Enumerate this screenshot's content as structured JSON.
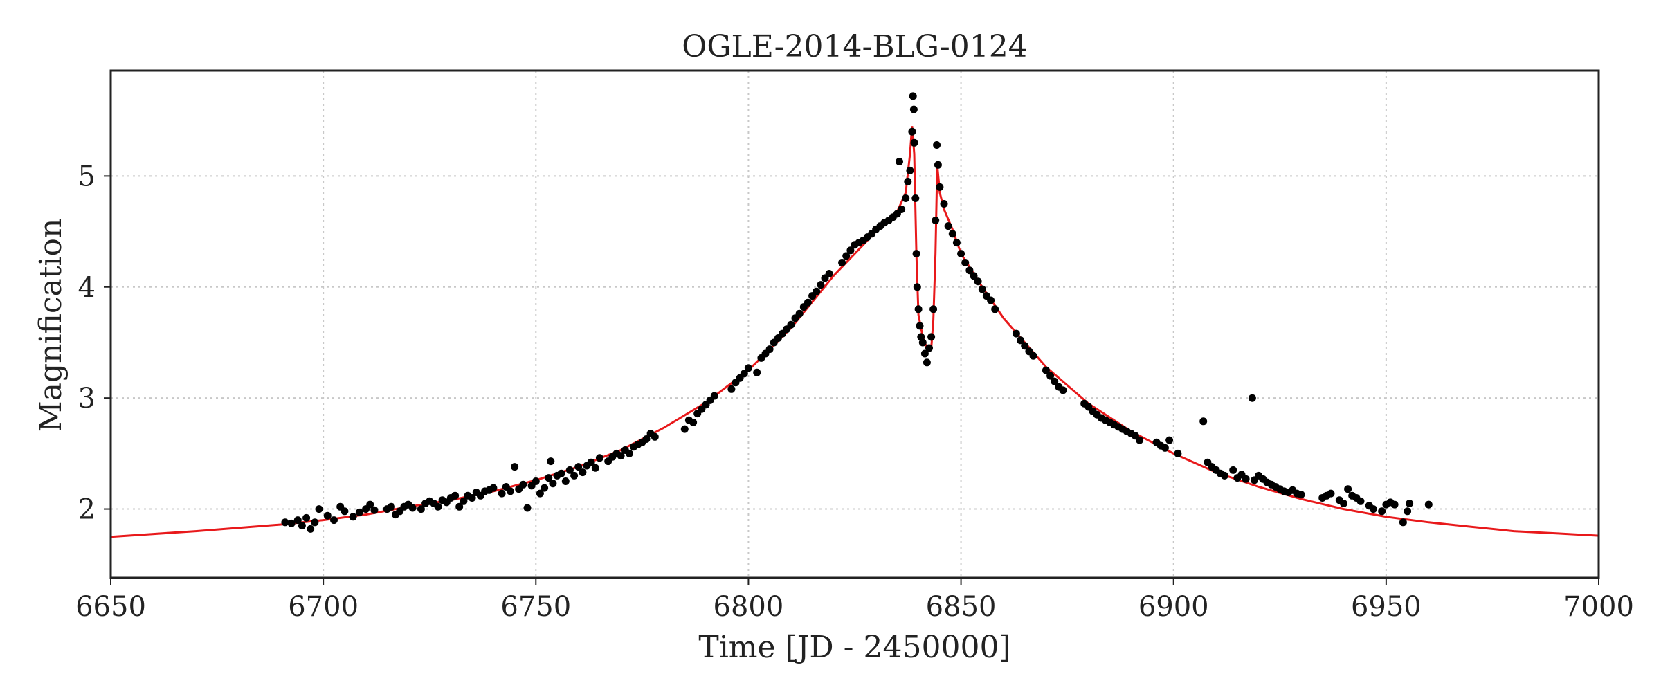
{
  "chart_data": {
    "type": "scatter",
    "title": "OGLE-2014-BLG-0124",
    "xlabel": "Time [JD - 2450000]",
    "ylabel": "Magnification",
    "xlim": [
      6650,
      7000
    ],
    "ylim": [
      1.38,
      5.95
    ],
    "xticks": [
      6650,
      6700,
      6750,
      6800,
      6850,
      6900,
      6950,
      7000
    ],
    "yticks": [
      2,
      3,
      4,
      5
    ],
    "grid": true,
    "colors": {
      "data": "#000000",
      "model": "#e8191b"
    },
    "series": [
      {
        "kind": "points",
        "color": "#000000",
        "points": [
          [
            6691.0,
            1.88
          ],
          [
            6692.5,
            1.87
          ],
          [
            6694.0,
            1.9
          ],
          [
            6695.0,
            1.85
          ],
          [
            6696.0,
            1.92
          ],
          [
            6697.0,
            1.82
          ],
          [
            6698.0,
            1.88
          ],
          [
            6699.0,
            2.0
          ],
          [
            6701.0,
            1.94
          ],
          [
            6702.5,
            1.9
          ],
          [
            6704.0,
            2.02
          ],
          [
            6705.0,
            1.98
          ],
          [
            6707.0,
            1.93
          ],
          [
            6708.5,
            1.97
          ],
          [
            6710.0,
            2.0
          ],
          [
            6711.0,
            2.04
          ],
          [
            6712.0,
            1.99
          ],
          [
            6715.0,
            2.0
          ],
          [
            6716.0,
            2.02
          ],
          [
            6717.0,
            1.95
          ],
          [
            6718.0,
            1.98
          ],
          [
            6719.0,
            2.02
          ],
          [
            6720.0,
            2.04
          ],
          [
            6721.0,
            2.01
          ],
          [
            6723.0,
            2.0
          ],
          [
            6724.0,
            2.05
          ],
          [
            6725.0,
            2.07
          ],
          [
            6726.0,
            2.05
          ],
          [
            6727.0,
            2.02
          ],
          [
            6728.0,
            2.08
          ],
          [
            6729.0,
            2.06
          ],
          [
            6730.0,
            2.1
          ],
          [
            6731.0,
            2.12
          ],
          [
            6732.0,
            2.02
          ],
          [
            6733.0,
            2.07
          ],
          [
            6734.0,
            2.12
          ],
          [
            6735.0,
            2.1
          ],
          [
            6736.0,
            2.15
          ],
          [
            6737.0,
            2.12
          ],
          [
            6738.0,
            2.16
          ],
          [
            6739.0,
            2.17
          ],
          [
            6740.0,
            2.19
          ],
          [
            6742.0,
            2.14
          ],
          [
            6743.0,
            2.2
          ],
          [
            6744.0,
            2.16
          ],
          [
            6745.0,
            2.38
          ],
          [
            6746.0,
            2.18
          ],
          [
            6747.0,
            2.22
          ],
          [
            6748.0,
            2.01
          ],
          [
            6749.0,
            2.21
          ],
          [
            6750.0,
            2.25
          ],
          [
            6751.0,
            2.14
          ],
          [
            6752.0,
            2.19
          ],
          [
            6753.0,
            2.28
          ],
          [
            6753.5,
            2.43
          ],
          [
            6754.0,
            2.23
          ],
          [
            6755.0,
            2.3
          ],
          [
            6756.0,
            2.32
          ],
          [
            6757.0,
            2.25
          ],
          [
            6758.0,
            2.35
          ],
          [
            6759.0,
            2.3
          ],
          [
            6760.0,
            2.38
          ],
          [
            6761.0,
            2.33
          ],
          [
            6762.0,
            2.39
          ],
          [
            6763.0,
            2.42
          ],
          [
            6764.0,
            2.37
          ],
          [
            6765.0,
            2.46
          ],
          [
            6767.0,
            2.43
          ],
          [
            6768.0,
            2.47
          ],
          [
            6769.0,
            2.5
          ],
          [
            6770.0,
            2.48
          ],
          [
            6771.0,
            2.53
          ],
          [
            6772.0,
            2.5
          ],
          [
            6773.0,
            2.56
          ],
          [
            6774.0,
            2.58
          ],
          [
            6775.0,
            2.6
          ],
          [
            6776.0,
            2.63
          ],
          [
            6777.0,
            2.68
          ],
          [
            6778.0,
            2.65
          ],
          [
            6785.0,
            2.72
          ],
          [
            6786.0,
            2.8
          ],
          [
            6787.0,
            2.78
          ],
          [
            6788.0,
            2.86
          ],
          [
            6789.0,
            2.9
          ],
          [
            6790.0,
            2.94
          ],
          [
            6791.0,
            2.98
          ],
          [
            6792.0,
            3.02
          ],
          [
            6796.0,
            3.08
          ],
          [
            6797.0,
            3.14
          ],
          [
            6798.0,
            3.18
          ],
          [
            6799.0,
            3.22
          ],
          [
            6800.0,
            3.27
          ],
          [
            6802.0,
            3.23
          ],
          [
            6803.0,
            3.36
          ],
          [
            6804.0,
            3.4
          ],
          [
            6805.0,
            3.44
          ],
          [
            6806.0,
            3.5
          ],
          [
            6807.0,
            3.54
          ],
          [
            6808.0,
            3.58
          ],
          [
            6809.0,
            3.62
          ],
          [
            6810.0,
            3.66
          ],
          [
            6811.0,
            3.72
          ],
          [
            6812.0,
            3.76
          ],
          [
            6813.0,
            3.82
          ],
          [
            6814.0,
            3.86
          ],
          [
            6815.0,
            3.92
          ],
          [
            6816.0,
            3.96
          ],
          [
            6817.0,
            4.02
          ],
          [
            6818.0,
            4.08
          ],
          [
            6819.0,
            4.12
          ],
          [
            6822.0,
            4.22
          ],
          [
            6823.0,
            4.28
          ],
          [
            6824.0,
            4.33
          ],
          [
            6825.0,
            4.38
          ],
          [
            6826.0,
            4.4
          ],
          [
            6827.0,
            4.42
          ],
          [
            6828.0,
            4.45
          ],
          [
            6829.0,
            4.48
          ],
          [
            6830.0,
            4.52
          ],
          [
            6831.0,
            4.55
          ],
          [
            6832.0,
            4.58
          ],
          [
            6833.0,
            4.6
          ],
          [
            6834.0,
            4.63
          ],
          [
            6835.0,
            4.66
          ],
          [
            6835.5,
            5.13
          ],
          [
            6836.0,
            4.7
          ],
          [
            6837.0,
            4.8
          ],
          [
            6837.5,
            4.95
          ],
          [
            6838.0,
            5.05
          ],
          [
            6838.5,
            5.4
          ],
          [
            6838.7,
            5.72
          ],
          [
            6838.9,
            5.6
          ],
          [
            6839.0,
            5.3
          ],
          [
            6839.3,
            4.8
          ],
          [
            6839.5,
            4.3
          ],
          [
            6839.7,
            4.0
          ],
          [
            6840.0,
            3.8
          ],
          [
            6840.3,
            3.65
          ],
          [
            6840.6,
            3.55
          ],
          [
            6841.0,
            3.5
          ],
          [
            6841.5,
            3.4
          ],
          [
            6842.0,
            3.32
          ],
          [
            6842.5,
            3.45
          ],
          [
            6843.0,
            3.55
          ],
          [
            6843.5,
            3.8
          ],
          [
            6844.0,
            4.6
          ],
          [
            6844.3,
            5.28
          ],
          [
            6844.6,
            5.1
          ],
          [
            6845.0,
            4.9
          ],
          [
            6846.0,
            4.75
          ],
          [
            6847.0,
            4.55
          ],
          [
            6848.0,
            4.48
          ],
          [
            6849.0,
            4.4
          ],
          [
            6850.0,
            4.3
          ],
          [
            6851.0,
            4.22
          ],
          [
            6852.0,
            4.15
          ],
          [
            6853.0,
            4.1
          ],
          [
            6854.0,
            4.05
          ],
          [
            6855.0,
            3.98
          ],
          [
            6856.0,
            3.92
          ],
          [
            6857.0,
            3.88
          ],
          [
            6858.0,
            3.8
          ],
          [
            6863.0,
            3.58
          ],
          [
            6864.0,
            3.52
          ],
          [
            6865.0,
            3.47
          ],
          [
            6866.0,
            3.42
          ],
          [
            6867.0,
            3.38
          ],
          [
            6870.0,
            3.25
          ],
          [
            6871.0,
            3.2
          ],
          [
            6872.0,
            3.15
          ],
          [
            6873.0,
            3.1
          ],
          [
            6874.0,
            3.07
          ],
          [
            6879.0,
            2.95
          ],
          [
            6880.0,
            2.92
          ],
          [
            6881.0,
            2.88
          ],
          [
            6882.0,
            2.85
          ],
          [
            6883.0,
            2.82
          ],
          [
            6884.0,
            2.8
          ],
          [
            6885.0,
            2.78
          ],
          [
            6886.0,
            2.76
          ],
          [
            6887.0,
            2.74
          ],
          [
            6888.0,
            2.72
          ],
          [
            6889.0,
            2.7
          ],
          [
            6890.0,
            2.68
          ],
          [
            6891.0,
            2.66
          ],
          [
            6892.0,
            2.62
          ],
          [
            6896.0,
            2.6
          ],
          [
            6897.0,
            2.57
          ],
          [
            6898.0,
            2.55
          ],
          [
            6899.0,
            2.62
          ],
          [
            6901.0,
            2.5
          ],
          [
            6907.0,
            2.79
          ],
          [
            6908.0,
            2.42
          ],
          [
            6909.0,
            2.38
          ],
          [
            6910.0,
            2.35
          ],
          [
            6911.0,
            2.32
          ],
          [
            6912.0,
            2.3
          ],
          [
            6914.0,
            2.35
          ],
          [
            6915.0,
            2.28
          ],
          [
            6916.0,
            2.31
          ],
          [
            6917.0,
            2.27
          ],
          [
            6918.5,
            3.0
          ],
          [
            6919.0,
            2.26
          ],
          [
            6920.0,
            2.3
          ],
          [
            6921.0,
            2.27
          ],
          [
            6922.0,
            2.24
          ],
          [
            6923.0,
            2.22
          ],
          [
            6924.0,
            2.2
          ],
          [
            6925.0,
            2.18
          ],
          [
            6926.0,
            2.16
          ],
          [
            6927.0,
            2.15
          ],
          [
            6928.0,
            2.17
          ],
          [
            6929.0,
            2.14
          ],
          [
            6930.0,
            2.13
          ],
          [
            6935.0,
            2.1
          ],
          [
            6936.0,
            2.12
          ],
          [
            6937.0,
            2.14
          ],
          [
            6939.0,
            2.08
          ],
          [
            6940.0,
            2.05
          ],
          [
            6941.0,
            2.18
          ],
          [
            6942.0,
            2.12
          ],
          [
            6943.0,
            2.1
          ],
          [
            6944.0,
            2.07
          ],
          [
            6946.0,
            2.03
          ],
          [
            6947.0,
            2.0
          ],
          [
            6949.0,
            1.98
          ],
          [
            6950.0,
            2.04
          ],
          [
            6951.0,
            2.06
          ],
          [
            6952.0,
            2.04
          ],
          [
            6954.0,
            1.88
          ],
          [
            6955.0,
            1.98
          ],
          [
            6955.5,
            2.05
          ],
          [
            6960.0,
            2.04
          ]
        ]
      },
      {
        "kind": "model",
        "color": "#e8191b",
        "points": [
          [
            6650,
            1.75
          ],
          [
            6670,
            1.8
          ],
          [
            6690,
            1.86
          ],
          [
            6700,
            1.9
          ],
          [
            6710,
            1.95
          ],
          [
            6720,
            2.02
          ],
          [
            6730,
            2.08
          ],
          [
            6740,
            2.16
          ],
          [
            6750,
            2.26
          ],
          [
            6760,
            2.38
          ],
          [
            6770,
            2.53
          ],
          [
            6780,
            2.73
          ],
          [
            6790,
            2.96
          ],
          [
            6800,
            3.25
          ],
          [
            6810,
            3.63
          ],
          [
            6820,
            4.1
          ],
          [
            6830,
            4.5
          ],
          [
            6835,
            4.68
          ],
          [
            6837,
            4.85
          ],
          [
            6838,
            5.2
          ],
          [
            6838.5,
            5.45
          ],
          [
            6839,
            5.2
          ],
          [
            6839.5,
            4.3
          ],
          [
            6840,
            3.75
          ],
          [
            6841,
            3.55
          ],
          [
            6842,
            3.45
          ],
          [
            6843,
            3.45
          ],
          [
            6843.5,
            3.7
          ],
          [
            6844,
            4.3
          ],
          [
            6844.4,
            5.1
          ],
          [
            6845,
            4.85
          ],
          [
            6846,
            4.7
          ],
          [
            6848,
            4.52
          ],
          [
            6850,
            4.3
          ],
          [
            6855,
            4.0
          ],
          [
            6860,
            3.72
          ],
          [
            6865,
            3.5
          ],
          [
            6870,
            3.28
          ],
          [
            6880,
            2.95
          ],
          [
            6890,
            2.7
          ],
          [
            6900,
            2.5
          ],
          [
            6910,
            2.33
          ],
          [
            6920,
            2.2
          ],
          [
            6930,
            2.09
          ],
          [
            6940,
            2.0
          ],
          [
            6950,
            1.93
          ],
          [
            6960,
            1.88
          ],
          [
            6970,
            1.84
          ],
          [
            6980,
            1.8
          ],
          [
            6990,
            1.78
          ],
          [
            7000,
            1.76
          ]
        ]
      }
    ]
  }
}
